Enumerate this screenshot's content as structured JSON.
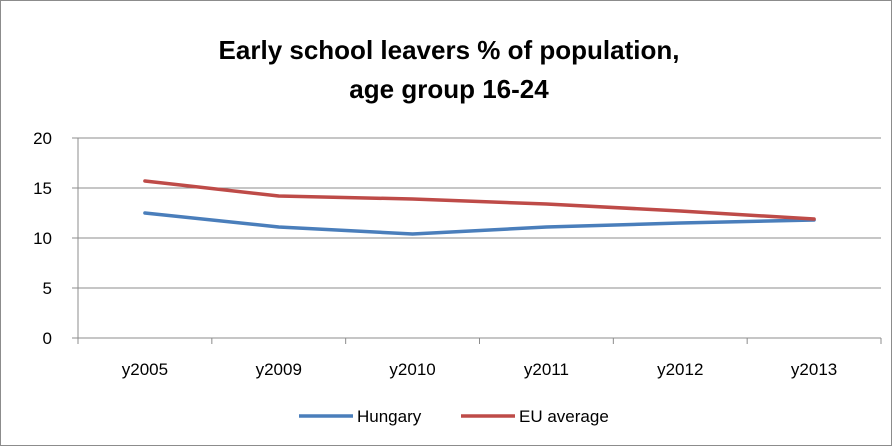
{
  "chart_data": {
    "type": "line",
    "title_lines": [
      "Early school leavers % of population,",
      "age group 16-24"
    ],
    "xlabel": "",
    "ylabel": "",
    "categories": [
      "y2005",
      "y2009",
      "y2010",
      "y2011",
      "y2012",
      "y2013"
    ],
    "yticks": [
      "0",
      "5",
      "10",
      "15",
      "20"
    ],
    "ylim": [
      0,
      20
    ],
    "grid": "horizontal",
    "legend": "bottom",
    "series": [
      {
        "name": "Hungary",
        "color": "#4a7ebb",
        "values": [
          12.5,
          11.1,
          10.4,
          11.1,
          11.5,
          11.8
        ]
      },
      {
        "name": "EU average",
        "color": "#be4b48",
        "values": [
          15.7,
          14.2,
          13.9,
          13.4,
          12.7,
          11.9
        ]
      }
    ]
  }
}
